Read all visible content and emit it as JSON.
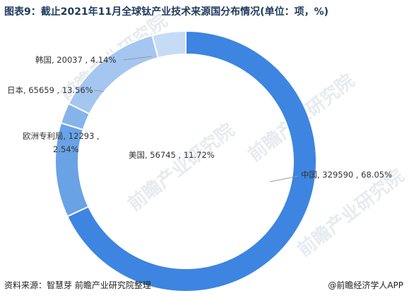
{
  "header": {
    "title": "图表9：截止2021年11月全球钛产业技术来源国分布情况(单位：项，%)"
  },
  "footer": {
    "source": "资料来源：智慧芽 前瞻产业研究院整理",
    "credit": "@前瞻经济学人APP"
  },
  "watermark": {
    "text": "前瞻产业研究院"
  },
  "colors": {
    "china": "#3d85e0",
    "usa": "#6aa2e6",
    "epo": "#86b3ea",
    "japan": "#a4c6f0",
    "korea": "#c6dcf6"
  },
  "chart_data": {
    "type": "pie",
    "subtype": "donut",
    "title": "图表9：截止2021年11月全球钛产业技术来源国分布情况(单位：项，%)",
    "unit": "项，%",
    "slices": [
      {
        "name": "中国",
        "value": 329590,
        "percent": 68.05,
        "label_line1": "中国, 329590 , 68.05%"
      },
      {
        "name": "美国",
        "value": 56745,
        "percent": 11.72,
        "label_line1": "美国, 56745 , 11.72%"
      },
      {
        "name": "欧洲专利局",
        "value": 12293,
        "percent": 2.54,
        "label_line1": "欧洲专利局, 12293 ,",
        "label_line2": "2.54%"
      },
      {
        "name": "日本",
        "value": 65659,
        "percent": 13.56,
        "label_line1": "日本, 65659 , 13.56%"
      },
      {
        "name": "韩国",
        "value": 20037,
        "percent": 4.14,
        "label_line1": "韩国, 20037 , 4.14%"
      }
    ]
  }
}
